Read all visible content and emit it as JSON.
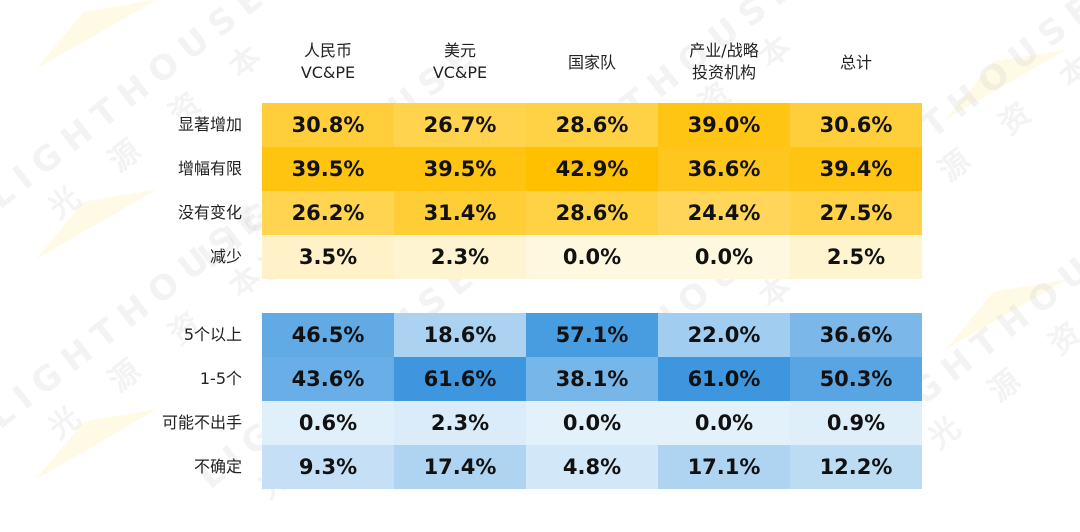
{
  "chart_data": [
    {
      "type": "heatmap",
      "columns": [
        "人民币\nVC&PE",
        "美元\nVC&PE",
        "国家队",
        "产业/战略\n投资机构",
        "总计"
      ],
      "rows": [
        "显著增加",
        "增幅有限",
        "没有变化",
        "减少"
      ],
      "values": [
        [
          "30.8%",
          "26.7%",
          "28.6%",
          "39.0%",
          "30.6%"
        ],
        [
          "39.5%",
          "39.5%",
          "42.9%",
          "36.6%",
          "39.4%"
        ],
        [
          "26.2%",
          "31.4%",
          "28.6%",
          "24.4%",
          "27.5%"
        ],
        [
          "3.5%",
          "2.3%",
          "0.0%",
          "0.0%",
          "2.5%"
        ]
      ],
      "color_scheme": "yellow"
    },
    {
      "type": "heatmap",
      "columns": [
        "人民币\nVC&PE",
        "美元\nVC&PE",
        "国家队",
        "产业/战略\n投资机构",
        "总计"
      ],
      "rows": [
        "5个以上",
        "1-5个",
        "可能不出手",
        "不确定"
      ],
      "values": [
        [
          "46.5%",
          "18.6%",
          "57.1%",
          "22.0%",
          "36.6%"
        ],
        [
          "43.6%",
          "61.6%",
          "38.1%",
          "61.0%",
          "50.3%"
        ],
        [
          "0.6%",
          "2.3%",
          "0.0%",
          "0.0%",
          "0.9%"
        ],
        [
          "9.3%",
          "17.4%",
          "4.8%",
          "17.1%",
          "12.2%"
        ]
      ],
      "color_scheme": "blue"
    }
  ],
  "watermark": {
    "text_en": "LIGHTHOUSE",
    "text_cn": "光 源 资 本"
  },
  "colors": {
    "yellow_low": "#fff8e1",
    "yellow_high": "#ffc000",
    "blue_low": "#e3f1fb",
    "blue_high": "#3d96de"
  }
}
